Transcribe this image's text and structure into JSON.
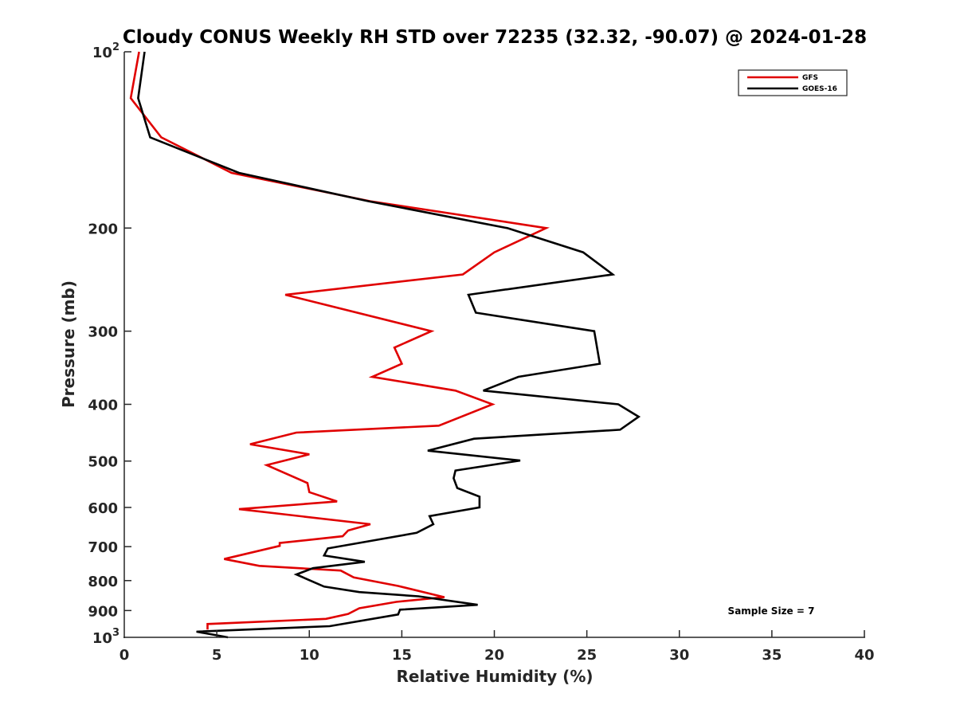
{
  "chart_data": {
    "type": "line",
    "title": "Cloudy CONUS Weekly RH STD over 72235 (32.32, -90.07) @ 2024-01-28",
    "xlabel": "Relative Humidity (%)",
    "ylabel": "Pressure (mb)",
    "xlim": [
      0,
      40
    ],
    "ylim": [
      100,
      1000
    ],
    "yscale": "log",
    "yreversed": true,
    "grid": false,
    "xticks": [
      0,
      5,
      10,
      15,
      20,
      25,
      30,
      35,
      40
    ],
    "xtick_labels": [
      "0",
      "5",
      "10",
      "15",
      "20",
      "25",
      "30",
      "35",
      "40"
    ],
    "yticks": [
      100,
      200,
      300,
      400,
      500,
      600,
      700,
      800,
      900,
      1000
    ],
    "ytick_labels": [
      {
        "base": "10",
        "exp": "2"
      },
      {
        "base": "200",
        "exp": ""
      },
      {
        "base": "300",
        "exp": ""
      },
      {
        "base": "400",
        "exp": ""
      },
      {
        "base": "500",
        "exp": ""
      },
      {
        "base": "600",
        "exp": ""
      },
      {
        "base": "700",
        "exp": ""
      },
      {
        "base": "800",
        "exp": ""
      },
      {
        "base": "900",
        "exp": ""
      },
      {
        "base": "10",
        "exp": "3"
      }
    ],
    "legend": {
      "placement": "top-right",
      "entries": [
        "GFS",
        "GOES-16"
      ]
    },
    "annotation": "Sample Size = 7",
    "series": [
      {
        "name": "GFS",
        "color": "#e00000",
        "points": [
          [
            0.8,
            100
          ],
          [
            0.35,
            120
          ],
          [
            2.0,
            140
          ],
          [
            5.8,
            161
          ],
          [
            13.3,
            180
          ],
          [
            22.8,
            200
          ],
          [
            20.0,
            220
          ],
          [
            18.3,
            240
          ],
          [
            8.7,
            260
          ],
          [
            16.6,
            300
          ],
          [
            14.6,
            320
          ],
          [
            15.0,
            341
          ],
          [
            13.4,
            359
          ],
          [
            17.9,
            379
          ],
          [
            19.9,
            400
          ],
          [
            17.0,
            435
          ],
          [
            9.3,
            447
          ],
          [
            6.8,
            468
          ],
          [
            10.0,
            487
          ],
          [
            7.7,
            508
          ],
          [
            9.9,
            545
          ],
          [
            10.0,
            565
          ],
          [
            11.5,
            586
          ],
          [
            6.2,
            604
          ],
          [
            13.3,
            641
          ],
          [
            12.1,
            657
          ],
          [
            11.8,
            672
          ],
          [
            8.4,
            690
          ],
          [
            8.4,
            698
          ],
          [
            5.4,
            735
          ],
          [
            7.3,
            755
          ],
          [
            11.7,
            769
          ],
          [
            12.4,
            790
          ],
          [
            14.8,
            817
          ],
          [
            17.3,
            854
          ],
          [
            14.7,
            870
          ],
          [
            12.7,
            892
          ],
          [
            12.1,
            912
          ],
          [
            10.9,
            930
          ],
          [
            4.5,
            949
          ],
          [
            4.5,
            970
          ]
        ]
      },
      {
        "name": "GOES-16",
        "color": "#000000",
        "points": [
          [
            1.1,
            100
          ],
          [
            0.75,
            120
          ],
          [
            1.4,
            140
          ],
          [
            6.2,
            161
          ],
          [
            13.2,
            180
          ],
          [
            20.7,
            200
          ],
          [
            24.8,
            220
          ],
          [
            26.4,
            240
          ],
          [
            18.6,
            260
          ],
          [
            19.0,
            279
          ],
          [
            25.4,
            300
          ],
          [
            25.7,
            341
          ],
          [
            21.3,
            359
          ],
          [
            19.4,
            379
          ],
          [
            26.7,
            400
          ],
          [
            27.8,
            420
          ],
          [
            26.8,
            442
          ],
          [
            18.9,
            458
          ],
          [
            16.4,
            480
          ],
          [
            21.4,
            499
          ],
          [
            17.9,
            519
          ],
          [
            17.8,
            535
          ],
          [
            18.0,
            556
          ],
          [
            19.2,
            575
          ],
          [
            19.2,
            600
          ],
          [
            16.5,
            621
          ],
          [
            16.7,
            641
          ],
          [
            15.8,
            663
          ],
          [
            11.0,
            705
          ],
          [
            10.8,
            725
          ],
          [
            13.0,
            743
          ],
          [
            10.2,
            762
          ],
          [
            9.3,
            781
          ],
          [
            10.8,
            819
          ],
          [
            12.7,
            837
          ],
          [
            15.9,
            851
          ],
          [
            19.1,
            880
          ],
          [
            14.9,
            897
          ],
          [
            14.8,
            914
          ],
          [
            11.1,
            957
          ],
          [
            3.9,
            978
          ],
          [
            5.6,
            1000
          ]
        ]
      }
    ]
  }
}
